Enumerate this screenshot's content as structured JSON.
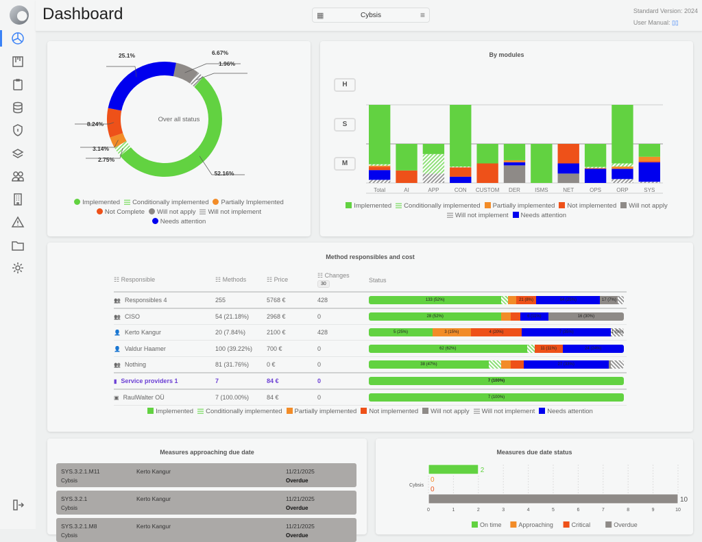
{
  "header": {
    "title": "Dashboard",
    "selector": "Cybsis",
    "standard_version": "Standard Version: 2024",
    "user_manual": "User Manual:"
  },
  "sidebar": {
    "active": "dashboard",
    "items": [
      "dashboard",
      "modules",
      "tasks",
      "database",
      "security",
      "layers",
      "users",
      "organization",
      "risks",
      "documents",
      "settings"
    ],
    "logout": "logout"
  },
  "colors": {
    "implemented": "#62d241",
    "conditional": "#8fe07a",
    "partial": "#f28c28",
    "not_implemented": "#ee5119",
    "will_not_apply": "#8e8a87",
    "will_not_implement": "#aaaaaa",
    "needs_attention": "#0000ee",
    "accent": "#3b82f6",
    "provider": "#6b3fd4"
  },
  "overall": {
    "center_label": "Over all status",
    "slices": [
      {
        "key": "will_not_apply",
        "value": 6.67,
        "label": "6.67%"
      },
      {
        "key": "will_not_implement",
        "value": 1.96,
        "label": "1.96%"
      },
      {
        "key": "implemented",
        "value": 52.16,
        "label": "52.16%"
      },
      {
        "key": "conditional",
        "value": 2.75,
        "label": "2.75%"
      },
      {
        "key": "partial",
        "value": 3.14,
        "label": "3.14%"
      },
      {
        "key": "not_implemented",
        "value": 8.24,
        "label": "8.24%"
      },
      {
        "key": "needs_attention",
        "value": 25.1,
        "label": "25.1%"
      }
    ],
    "legend": [
      {
        "key": "implemented",
        "label": "Implemented"
      },
      {
        "key": "conditional",
        "label": "Conditionally implemented"
      },
      {
        "key": "partial",
        "label": "Partially Implemented"
      },
      {
        "key": "not_implemented",
        "label": "Not Complete"
      },
      {
        "key": "will_not_apply",
        "label": "Will not apply"
      },
      {
        "key": "will_not_implement",
        "label": "Will not implement"
      },
      {
        "key": "needs_attention",
        "label": "Needs attention"
      }
    ]
  },
  "modules": {
    "title": "By modules",
    "levels": [
      "H",
      "S",
      "M"
    ],
    "bars": [
      {
        "name": "Total",
        "level": "S",
        "segments": {
          "will_not_implement": 4,
          "needs_attention": 12.5,
          "not_implemented": 4.3,
          "partial": 1.4,
          "conditional": 1.7,
          "implemented": 76.1
        }
      },
      {
        "name": "AI",
        "level": "M",
        "segments": {
          "not_implemented": 32,
          "implemented": 68
        }
      },
      {
        "name": "APP",
        "level": "M",
        "segments": {
          "will_not_implement": 24,
          "conditional": 50,
          "implemented": 26
        }
      },
      {
        "name": "CON",
        "level": "S",
        "segments": {
          "needs_attention": 8,
          "not_implemented": 12,
          "conditional": 1,
          "implemented": 79
        }
      },
      {
        "name": "CUSTOM",
        "level": "M",
        "segments": {
          "not_implemented": 50,
          "implemented": 50
        }
      },
      {
        "name": "DER",
        "level": "M",
        "segments": {
          "will_not_apply": 45,
          "needs_attention": 8,
          "partial": 5,
          "implemented": 42
        }
      },
      {
        "name": "ISMS",
        "level": "M",
        "segments": {
          "implemented": 100
        }
      },
      {
        "name": "NET",
        "level": "M",
        "segments": {
          "will_not_apply": 24,
          "needs_attention": 26,
          "not_implemented": 50
        }
      },
      {
        "name": "OPS",
        "level": "M",
        "segments": {
          "needs_attention": 36,
          "not_implemented": 2,
          "conditional": 3,
          "implemented": 59
        }
      },
      {
        "name": "ORP",
        "level": "S",
        "segments": {
          "will_not_implement": 5,
          "needs_attention": 13,
          "partial": 3,
          "conditional": 4,
          "implemented": 75
        }
      },
      {
        "name": "SYS",
        "level": "M",
        "segments": {
          "will_not_implement": 3,
          "needs_attention": 50,
          "not_implemented": 3,
          "partial": 11,
          "implemented": 33
        }
      }
    ],
    "legend": [
      {
        "key": "implemented",
        "label": "Implemented"
      },
      {
        "key": "conditional",
        "label": "Conditionally implemented"
      },
      {
        "key": "partial",
        "label": "Partially implemented"
      },
      {
        "key": "not_implemented",
        "label": "Not implemented"
      },
      {
        "key": "will_not_apply",
        "label": "Will not apply"
      },
      {
        "key": "will_not_implement",
        "label": "Will not implement"
      },
      {
        "key": "needs_attention",
        "label": "Needs attention"
      }
    ]
  },
  "responsibles": {
    "title": "Method responsibles and cost",
    "columns": {
      "responsible": "Responsible",
      "methods": "Methods",
      "price": "Price",
      "changes": "Changes",
      "changes_days": "30",
      "status": "Status"
    },
    "rows": [
      {
        "icon": "group",
        "name": "Responsibles 4",
        "methods": "255",
        "price": "5768 €",
        "changes": "428",
        "style": "thick",
        "status": [
          [
            "implemented",
            52,
            "133 (52%)"
          ],
          [
            "conditional",
            2.7,
            ""
          ],
          [
            "partial",
            3,
            ""
          ],
          [
            "not_implemented",
            8,
            "21 (8%)"
          ],
          [
            "needs_attention",
            25,
            "64 (25%)"
          ],
          [
            "will_not_apply",
            7,
            "17 (7%)"
          ],
          [
            "will_not_implement",
            2.3,
            ""
          ]
        ]
      },
      {
        "icon": "group",
        "name": "CISO",
        "methods": "54 (21.18%)",
        "price": "2968 €",
        "changes": "0",
        "status": [
          [
            "implemented",
            52,
            "28 (52%)"
          ],
          [
            "partial",
            3.7,
            ""
          ],
          [
            "not_implemented",
            3.7,
            ""
          ],
          [
            "needs_attention",
            11,
            "6 (11%)"
          ],
          [
            "will_not_apply",
            29.6,
            "16 (30%)"
          ]
        ]
      },
      {
        "icon": "user",
        "name": "Kerto Kangur",
        "methods": "20 (7.84%)",
        "price": "2100 €",
        "changes": "428",
        "status": [
          [
            "implemented",
            25,
            "5 (25%)"
          ],
          [
            "partial",
            15,
            "3 (15%)"
          ],
          [
            "not_implemented",
            20,
            "4 (20%)"
          ],
          [
            "needs_attention",
            35,
            "7 (35%)"
          ],
          [
            "will_not_implement",
            5,
            "1 (5%)"
          ]
        ]
      },
      {
        "icon": "user",
        "name": "Valdur Haamer",
        "methods": "100 (39.22%)",
        "price": "700 €",
        "changes": "0",
        "status": [
          [
            "implemented",
            62,
            "62 (62%)"
          ],
          [
            "conditional",
            3,
            ""
          ],
          [
            "not_implemented",
            11,
            "11 (11%)"
          ],
          [
            "needs_attention",
            24,
            "24 (24%)"
          ]
        ]
      },
      {
        "icon": "group",
        "name": "Nothing",
        "methods": "81 (31.76%)",
        "price": "0 €",
        "changes": "0",
        "style": "thick",
        "status": [
          [
            "implemented",
            47,
            "38 (47%)"
          ],
          [
            "conditional",
            5,
            ""
          ],
          [
            "partial",
            3.7,
            ""
          ],
          [
            "not_implemented",
            5,
            ""
          ],
          [
            "needs_attention",
            33.3,
            "27 (33%)"
          ],
          [
            "will_not_apply",
            1,
            ""
          ],
          [
            "will_not_implement",
            5,
            ""
          ]
        ]
      },
      {
        "icon": "building",
        "name": "Service providers 1",
        "methods": "7",
        "price": "84 €",
        "changes": "0",
        "style": "sp thick",
        "status": [
          [
            "implemented",
            100,
            "7 (100%)"
          ]
        ]
      },
      {
        "icon": "badge",
        "name": "RaulWalter OÜ",
        "methods": "7 (100.00%)",
        "price": "84 €",
        "changes": "0",
        "status": [
          [
            "implemented",
            100,
            "7 (100%)"
          ]
        ]
      }
    ],
    "legend": [
      {
        "key": "implemented",
        "label": "Implemented"
      },
      {
        "key": "conditional",
        "label": "Conditionally implemented"
      },
      {
        "key": "partial",
        "label": "Partially implemented"
      },
      {
        "key": "not_implemented",
        "label": "Not implemented"
      },
      {
        "key": "will_not_apply",
        "label": "Will not apply"
      },
      {
        "key": "will_not_implement",
        "label": "Will not implement"
      },
      {
        "key": "needs_attention",
        "label": "Needs attention"
      }
    ]
  },
  "approaching": {
    "title": "Measures approaching due date",
    "items": [
      {
        "id": "SYS.3.2.1.M11",
        "owner": "Kerto Kangur",
        "org": "Cybsis",
        "date": "11/21/2025",
        "status": "Overdue"
      },
      {
        "id": "SYS.3.2.1",
        "owner": "Kerto Kangur",
        "org": "Cybsis",
        "date": "11/21/2025",
        "status": "Overdue"
      },
      {
        "id": "SYS.3.2.1.M8",
        "owner": "Kerto Kangur",
        "org": "Cybsis",
        "date": "11/21/2025",
        "status": "Overdue"
      }
    ]
  },
  "due_status": {
    "title": "Measures due date status",
    "chart_data": {
      "type": "bar",
      "orientation": "horizontal",
      "categories": [
        "Cybsis"
      ],
      "series": [
        {
          "name": "On time",
          "values": [
            2
          ],
          "color": "#62d241"
        },
        {
          "name": "Approaching",
          "values": [
            0
          ],
          "color": "#f28c28"
        },
        {
          "name": "Critical",
          "values": [
            0
          ],
          "color": "#ee5119"
        },
        {
          "name": "Overdue",
          "values": [
            10
          ],
          "color": "#8e8a87"
        }
      ],
      "xlim": [
        0,
        10
      ],
      "xticks": [
        "0",
        "1",
        "2",
        "3",
        "4",
        "5",
        "6",
        "7",
        "8",
        "9",
        "10"
      ],
      "grid": true,
      "legend": "bottom"
    }
  }
}
